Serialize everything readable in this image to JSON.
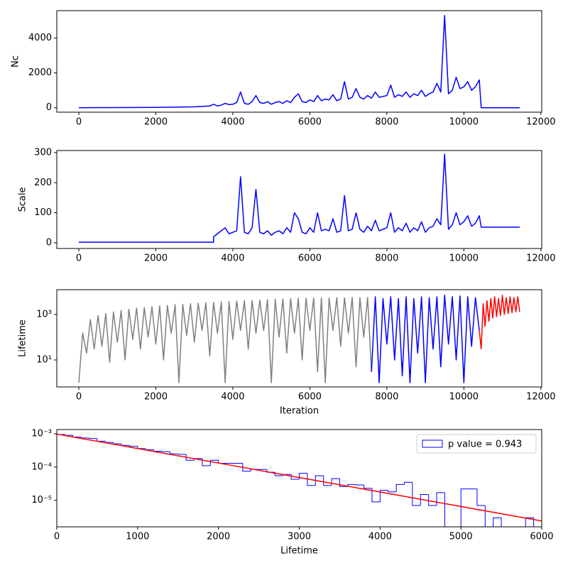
{
  "chart_data": [
    {
      "type": "line",
      "ylabel": "Nc",
      "xlim": [
        -572,
        12022
      ],
      "ylim": [
        -255,
        5575
      ],
      "xticks": [
        0,
        2000,
        4000,
        6000,
        8000,
        10000,
        12000
      ],
      "yticks": [
        0,
        2000,
        4000
      ],
      "x": [
        0,
        1000,
        2000,
        3000,
        3400,
        3500,
        3600,
        3700,
        3800,
        3900,
        4000,
        4100,
        4200,
        4300,
        4400,
        4500,
        4600,
        4700,
        4800,
        4900,
        5000,
        5100,
        5200,
        5300,
        5400,
        5500,
        5600,
        5700,
        5800,
        5900,
        6000,
        6100,
        6200,
        6300,
        6400,
        6500,
        6600,
        6700,
        6800,
        6900,
        7000,
        7100,
        7200,
        7300,
        7400,
        7500,
        7600,
        7700,
        7800,
        7900,
        8000,
        8100,
        8200,
        8300,
        8400,
        8500,
        8600,
        8700,
        8800,
        8900,
        9000,
        9100,
        9200,
        9300,
        9400,
        9500,
        9600,
        9700,
        9800,
        9900,
        10000,
        10100,
        10200,
        10300,
        10400,
        10450,
        11450
      ],
      "series": [
        {
          "color": "#0000ff",
          "values": [
            0,
            10,
            20,
            50,
            100,
            200,
            100,
            150,
            250,
            180,
            200,
            300,
            900,
            250,
            200,
            350,
            700,
            300,
            250,
            350,
            200,
            300,
            350,
            250,
            400,
            300,
            600,
            800,
            350,
            300,
            450,
            350,
            700,
            400,
            500,
            450,
            750,
            400,
            500,
            1500,
            500,
            600,
            1100,
            600,
            500,
            700,
            550,
            900,
            600,
            650,
            700,
            1300,
            600,
            750,
            650,
            900,
            600,
            800,
            700,
            1000,
            650,
            800,
            900,
            1400,
            900,
            5300,
            800,
            1000,
            1750,
            1100,
            1200,
            1500,
            1000,
            1200,
            1600,
            0,
            0
          ]
        }
      ]
    },
    {
      "type": "line",
      "ylabel": "Scale",
      "xlim": [
        -572,
        12022
      ],
      "ylim": [
        -19,
        307
      ],
      "xticks": [
        0,
        2000,
        4000,
        6000,
        8000,
        10000,
        12000
      ],
      "yticks": [
        0,
        100,
        200,
        300
      ],
      "x": [
        0,
        1000,
        2000,
        3000,
        3499,
        3500,
        3600,
        3700,
        3800,
        3900,
        4000,
        4100,
        4200,
        4300,
        4400,
        4500,
        4600,
        4700,
        4800,
        4900,
        5000,
        5100,
        5200,
        5300,
        5400,
        5500,
        5600,
        5700,
        5800,
        5900,
        6000,
        6100,
        6200,
        6300,
        6400,
        6500,
        6600,
        6700,
        6800,
        6900,
        7000,
        7100,
        7200,
        7300,
        7400,
        7500,
        7600,
        7700,
        7800,
        7900,
        8000,
        8100,
        8200,
        8300,
        8400,
        8500,
        8600,
        8700,
        8800,
        8900,
        9000,
        9100,
        9200,
        9300,
        9400,
        9500,
        9600,
        9700,
        9800,
        9900,
        10000,
        10100,
        10200,
        10300,
        10400,
        10450,
        11450
      ],
      "series": [
        {
          "color": "#0000ff",
          "values": [
            2,
            2,
            2,
            2,
            2,
            20,
            30,
            40,
            50,
            30,
            35,
            40,
            220,
            35,
            30,
            50,
            178,
            35,
            30,
            40,
            25,
            35,
            40,
            30,
            50,
            35,
            100,
            80,
            35,
            30,
            50,
            35,
            100,
            40,
            45,
            40,
            80,
            35,
            40,
            157,
            40,
            45,
            100,
            45,
            35,
            55,
            40,
            75,
            40,
            45,
            50,
            100,
            35,
            50,
            40,
            65,
            35,
            50,
            40,
            70,
            35,
            50,
            55,
            80,
            60,
            295,
            45,
            60,
            100,
            60,
            70,
            90,
            55,
            65,
            90,
            52,
            52
          ]
        }
      ]
    },
    {
      "type": "line",
      "ylabel": "Lifetime",
      "xlabel": "Iteration",
      "ylog": true,
      "xlim": [
        -572,
        12022
      ],
      "ylim": [
        0.65,
        12300
      ],
      "xticks": [
        0,
        2000,
        4000,
        6000,
        8000,
        10000,
        12000
      ],
      "yticks": [
        {
          "value": 10,
          "label": "10¹"
        },
        {
          "value": 1000,
          "label": "10³"
        }
      ],
      "series": [
        {
          "color": "#808080",
          "x": [
            0,
            100,
            200,
            300,
            400,
            500,
            600,
            700,
            800,
            900,
            1000,
            1100,
            1200,
            1300,
            1400,
            1500,
            1600,
            1700,
            1800,
            1900,
            2000,
            2100,
            2200,
            2300,
            2400,
            2500,
            2600,
            2700,
            2800,
            2900,
            3000,
            3100,
            3200,
            3300,
            3400,
            3500,
            3600,
            3700,
            3800,
            3900,
            4000,
            4100,
            4200,
            4300,
            4400,
            4500,
            4600,
            4700,
            4800,
            4900,
            5000,
            5100,
            5200,
            5300,
            5400,
            5500,
            5600,
            5700,
            5800,
            5900,
            6000,
            6100,
            6200,
            6300,
            6400,
            6500,
            6600,
            6700,
            6800,
            6900,
            7000,
            7100,
            7200,
            7300,
            7400,
            7500,
            7600
          ],
          "values": [
            1,
            150,
            20,
            600,
            30,
            900,
            40,
            1100,
            8,
            1300,
            60,
            1500,
            10,
            1700,
            80,
            1900,
            30,
            2000,
            100,
            2200,
            50,
            2400,
            10,
            2500,
            150,
            2700,
            1,
            2800,
            120,
            3000,
            60,
            3100,
            200,
            3300,
            15,
            3400,
            150,
            3600,
            1,
            3700,
            80,
            3900,
            200,
            4000,
            30,
            4100,
            150,
            4300,
            200,
            4500,
            1,
            4600,
            100,
            4800,
            20,
            5000,
            150,
            5100,
            10,
            5200,
            200,
            5300,
            3,
            5400,
            1,
            5300,
            200,
            5500,
            40,
            5400,
            150,
            5600,
            5,
            5500,
            100,
            5600,
            3
          ]
        },
        {
          "color": "#0000ff",
          "x": [
            7600,
            7700,
            7800,
            7900,
            8000,
            8100,
            8200,
            8300,
            8400,
            8500,
            8600,
            8700,
            8800,
            8900,
            9000,
            9100,
            9200,
            9300,
            9400,
            9500,
            9600,
            9700,
            9800,
            9900,
            10000,
            10100,
            10200,
            10300,
            10400
          ],
          "values": [
            3,
            6000,
            1,
            5000,
            50,
            6000,
            10,
            5000,
            2,
            6000,
            1,
            5000,
            20,
            6000,
            1,
            5500,
            30,
            6000,
            5,
            7000,
            50,
            6000,
            10,
            6500,
            1,
            6000,
            40,
            5500,
            200
          ]
        },
        {
          "color": "#ff0000",
          "x": [
            10400,
            10450,
            10500,
            10550,
            10600,
            10650,
            10700,
            10750,
            10800,
            10850,
            10900,
            10950,
            11000,
            11050,
            11100,
            11150,
            11200,
            11250,
            11300,
            11350,
            11400,
            11450
          ],
          "values": [
            200,
            30,
            3000,
            300,
            4000,
            500,
            5000,
            700,
            6000,
            800,
            5000,
            900,
            7000,
            1000,
            5500,
            1100,
            6000,
            1200,
            5500,
            1300,
            6000,
            1300
          ]
        }
      ]
    },
    {
      "type": "histogram",
      "xlabel": "Lifetime",
      "ylog": true,
      "legend": "upper right",
      "xlim": [
        0,
        6000
      ],
      "ylim": [
        1.6e-06,
        0.00134
      ],
      "xticks": [
        0,
        1000,
        2000,
        3000,
        4000,
        5000,
        6000
      ],
      "yticks": [
        {
          "value": 1e-05,
          "label": "10⁻⁵"
        },
        {
          "value": 0.0001,
          "label": "10⁻⁴"
        },
        {
          "value": 0.001,
          "label": "10⁻³"
        }
      ],
      "bins": [
        0,
        100,
        200,
        300,
        400,
        500,
        600,
        700,
        800,
        900,
        1000,
        1100,
        1200,
        1300,
        1400,
        1500,
        1600,
        1700,
        1800,
        1900,
        2000,
        2100,
        2200,
        2300,
        2400,
        2500,
        2600,
        2700,
        2800,
        2900,
        3000,
        3100,
        3200,
        3300,
        3400,
        3500,
        3600,
        3700,
        3800,
        3900,
        4000,
        4100,
        4200,
        4300,
        4400,
        4500,
        4600,
        4700,
        4800,
        4900,
        5000,
        5100,
        5200,
        5300,
        5400,
        5500,
        5600,
        5700,
        5800,
        5900
      ],
      "series": [
        {
          "name": "p value = 0.943",
          "color": "#0000ff",
          "values": [
            0.00095,
            0.0009,
            0.0008,
            0.00075,
            0.00072,
            0.0006,
            0.00055,
            0.0005,
            0.00045,
            0.00042,
            0.00036,
            0.00033,
            0.0003,
            0.00029,
            0.00025,
            0.00024,
            0.00016,
            0.00018,
            0.00011,
            0.00016,
            0.00013,
            0.00013,
            0.00013,
            7.5e-05,
            8.5e-05,
            8.5e-05,
            7e-05,
            5.5e-05,
            6e-05,
            4.3e-05,
            6.5e-05,
            2.8e-05,
            5.5e-05,
            2.8e-05,
            4.5e-05,
            2.6e-05,
            3e-05,
            2.9e-05,
            2.3e-05,
            9e-06,
            2e-05,
            1.8e-05,
            3e-05,
            3.5e-05,
            7e-06,
            1.5e-05,
            7e-06,
            1.7e-05,
            0,
            0,
            2.2e-05,
            2.2e-05,
            7e-06,
            0,
            3e-06,
            0,
            0,
            0,
            3e-06
          ]
        }
      ],
      "fit": {
        "color": "#ff0000",
        "x": [
          0,
          6000
        ],
        "values": [
          0.00098,
          2.4e-06
        ]
      }
    }
  ]
}
